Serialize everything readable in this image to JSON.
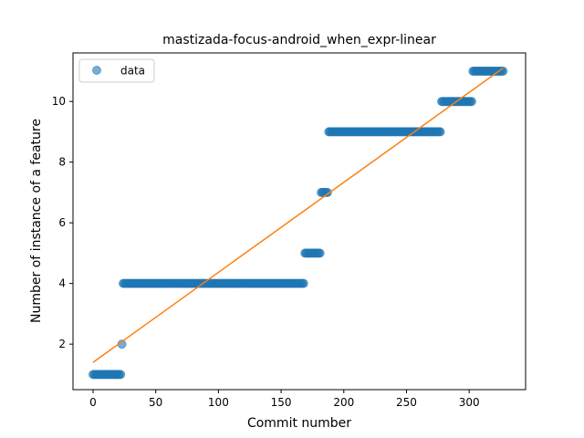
{
  "chart_data": {
    "type": "scatter",
    "title": "mastizada-focus-android_when_expr-linear",
    "xlabel": "Commit number",
    "ylabel": "Number of instance of a feature",
    "xlim": [
      -16,
      345
    ],
    "ylim": [
      0.5,
      11.6
    ],
    "xticks": [
      0,
      50,
      100,
      150,
      200,
      250,
      300
    ],
    "yticks": [
      2,
      4,
      6,
      8,
      10
    ],
    "grid": false,
    "legend": {
      "placement": "top-left",
      "entries": [
        "data"
      ]
    },
    "colors": {
      "data": "#1f77b4",
      "fit": "#ff7f0e"
    },
    "series": [
      {
        "name": "data",
        "kind": "points",
        "segments": [
          {
            "x_start": 0,
            "x_end": 22,
            "y": 1
          },
          {
            "x_start": 23,
            "x_end": 23,
            "y": 2
          },
          {
            "x_start": 24,
            "x_end": 168,
            "y": 4
          },
          {
            "x_start": 169,
            "x_end": 181,
            "y": 5
          },
          {
            "x_start": 182,
            "x_end": 187,
            "y": 7
          },
          {
            "x_start": 188,
            "x_end": 277,
            "y": 9
          },
          {
            "x_start": 278,
            "x_end": 302,
            "y": 10
          },
          {
            "x_start": 303,
            "x_end": 327,
            "y": 11
          }
        ]
      },
      {
        "kind": "line",
        "x": [
          0,
          327
        ],
        "y": [
          1.4,
          11.1
        ]
      }
    ]
  }
}
